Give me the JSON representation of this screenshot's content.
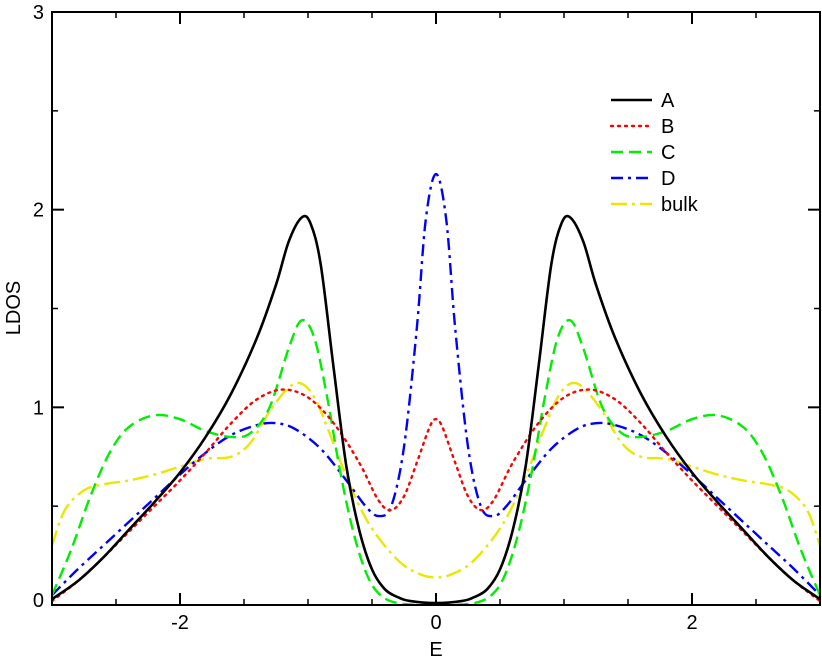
{
  "chart_data": {
    "type": "line",
    "title": "",
    "xlabel": "E",
    "ylabel": "LDOS",
    "xlim": [
      -3,
      3
    ],
    "ylim": [
      0,
      3
    ],
    "grid": false,
    "legend_position": "top-right",
    "x_ticks": [
      {
        "value": -2,
        "label": "-2"
      },
      {
        "value": 0,
        "label": "0"
      },
      {
        "value": 2,
        "label": "2"
      }
    ],
    "y_ticks": [
      {
        "value": 0,
        "label": "0"
      },
      {
        "value": 1,
        "label": "1"
      },
      {
        "value": 2,
        "label": "2"
      },
      {
        "value": 3,
        "label": "3"
      }
    ],
    "x_minor_ticks": [
      -2.5,
      -1.5,
      -1,
      -0.5,
      0.5,
      1,
      1.5,
      2.5
    ],
    "y_minor_ticks": [
      0.5,
      1.5,
      2.5
    ],
    "series": [
      {
        "name": "A",
        "color": "#000000",
        "dash": "solid",
        "points": [
          [
            -3,
            0.03
          ],
          [
            -2.8,
            0.12
          ],
          [
            -2.6,
            0.24
          ],
          [
            -2.4,
            0.38
          ],
          [
            -2.2,
            0.52
          ],
          [
            -2.0,
            0.67
          ],
          [
            -1.8,
            0.85
          ],
          [
            -1.6,
            1.07
          ],
          [
            -1.4,
            1.35
          ],
          [
            -1.25,
            1.62
          ],
          [
            -1.15,
            1.84
          ],
          [
            -1.05,
            1.96
          ],
          [
            -0.98,
            1.93
          ],
          [
            -0.9,
            1.72
          ],
          [
            -0.8,
            1.2
          ],
          [
            -0.7,
            0.7
          ],
          [
            -0.6,
            0.38
          ],
          [
            -0.5,
            0.18
          ],
          [
            -0.4,
            0.08
          ],
          [
            -0.3,
            0.04
          ],
          [
            -0.2,
            0.02
          ],
          [
            0,
            0.01
          ],
          [
            0.2,
            0.02
          ],
          [
            0.3,
            0.04
          ],
          [
            0.4,
            0.08
          ],
          [
            0.5,
            0.18
          ],
          [
            0.6,
            0.38
          ],
          [
            0.7,
            0.7
          ],
          [
            0.8,
            1.2
          ],
          [
            0.9,
            1.72
          ],
          [
            0.98,
            1.93
          ],
          [
            1.05,
            1.96
          ],
          [
            1.15,
            1.84
          ],
          [
            1.25,
            1.62
          ],
          [
            1.4,
            1.35
          ],
          [
            1.6,
            1.07
          ],
          [
            1.8,
            0.85
          ],
          [
            2.0,
            0.67
          ],
          [
            2.2,
            0.52
          ],
          [
            2.4,
            0.38
          ],
          [
            2.6,
            0.24
          ],
          [
            2.8,
            0.12
          ],
          [
            3,
            0.03
          ]
        ]
      },
      {
        "name": "B",
        "color": "#ff0000",
        "dash": "dotted",
        "points": [
          [
            -3,
            0.02
          ],
          [
            -2.8,
            0.12
          ],
          [
            -2.6,
            0.24
          ],
          [
            -2.4,
            0.37
          ],
          [
            -2.2,
            0.5
          ],
          [
            -2.0,
            0.63
          ],
          [
            -1.8,
            0.77
          ],
          [
            -1.6,
            0.92
          ],
          [
            -1.4,
            1.04
          ],
          [
            -1.2,
            1.09
          ],
          [
            -1.0,
            1.05
          ],
          [
            -0.8,
            0.92
          ],
          [
            -0.6,
            0.72
          ],
          [
            -0.45,
            0.53
          ],
          [
            -0.35,
            0.48
          ],
          [
            -0.25,
            0.55
          ],
          [
            -0.15,
            0.72
          ],
          [
            -0.05,
            0.9
          ],
          [
            0,
            0.94
          ],
          [
            0.05,
            0.9
          ],
          [
            0.15,
            0.72
          ],
          [
            0.25,
            0.55
          ],
          [
            0.35,
            0.48
          ],
          [
            0.45,
            0.53
          ],
          [
            0.6,
            0.72
          ],
          [
            0.8,
            0.92
          ],
          [
            1.0,
            1.05
          ],
          [
            1.2,
            1.09
          ],
          [
            1.4,
            1.04
          ],
          [
            1.6,
            0.92
          ],
          [
            1.8,
            0.77
          ],
          [
            2.0,
            0.63
          ],
          [
            2.2,
            0.5
          ],
          [
            2.4,
            0.37
          ],
          [
            2.6,
            0.24
          ],
          [
            2.8,
            0.12
          ],
          [
            3,
            0.02
          ]
        ]
      },
      {
        "name": "C",
        "color": "#00ee00",
        "dash": "dashed",
        "points": [
          [
            -3,
            0.05
          ],
          [
            -2.85,
            0.28
          ],
          [
            -2.7,
            0.55
          ],
          [
            -2.55,
            0.77
          ],
          [
            -2.4,
            0.9
          ],
          [
            -2.2,
            0.96
          ],
          [
            -2.0,
            0.94
          ],
          [
            -1.8,
            0.88
          ],
          [
            -1.6,
            0.85
          ],
          [
            -1.45,
            0.87
          ],
          [
            -1.3,
            1.0
          ],
          [
            -1.15,
            1.3
          ],
          [
            -1.05,
            1.44
          ],
          [
            -0.95,
            1.35
          ],
          [
            -0.85,
            1.05
          ],
          [
            -0.75,
            0.68
          ],
          [
            -0.65,
            0.38
          ],
          [
            -0.55,
            0.17
          ],
          [
            -0.45,
            0.06
          ],
          [
            -0.3,
            0.01
          ],
          [
            0,
            0
          ],
          [
            0.3,
            0.01
          ],
          [
            0.45,
            0.06
          ],
          [
            0.55,
            0.17
          ],
          [
            0.65,
            0.38
          ],
          [
            0.75,
            0.68
          ],
          [
            0.85,
            1.05
          ],
          [
            0.95,
            1.35
          ],
          [
            1.05,
            1.44
          ],
          [
            1.15,
            1.3
          ],
          [
            1.3,
            1.0
          ],
          [
            1.45,
            0.87
          ],
          [
            1.6,
            0.85
          ],
          [
            1.8,
            0.88
          ],
          [
            2.0,
            0.94
          ],
          [
            2.2,
            0.96
          ],
          [
            2.4,
            0.9
          ],
          [
            2.55,
            0.77
          ],
          [
            2.7,
            0.55
          ],
          [
            2.85,
            0.28
          ],
          [
            3,
            0.05
          ]
        ]
      },
      {
        "name": "D",
        "color": "#0000ff",
        "dash": "dashdot",
        "points": [
          [
            -3,
            0.05
          ],
          [
            -2.8,
            0.18
          ],
          [
            -2.6,
            0.3
          ],
          [
            -2.4,
            0.42
          ],
          [
            -2.2,
            0.54
          ],
          [
            -2.0,
            0.66
          ],
          [
            -1.8,
            0.77
          ],
          [
            -1.6,
            0.86
          ],
          [
            -1.4,
            0.91
          ],
          [
            -1.25,
            0.92
          ],
          [
            -1.1,
            0.89
          ],
          [
            -0.9,
            0.79
          ],
          [
            -0.7,
            0.63
          ],
          [
            -0.55,
            0.5
          ],
          [
            -0.45,
            0.45
          ],
          [
            -0.35,
            0.5
          ],
          [
            -0.25,
            0.8
          ],
          [
            -0.15,
            1.4
          ],
          [
            -0.08,
            1.95
          ],
          [
            0,
            2.18
          ],
          [
            0.08,
            1.95
          ],
          [
            0.15,
            1.4
          ],
          [
            0.25,
            0.8
          ],
          [
            0.35,
            0.5
          ],
          [
            0.45,
            0.45
          ],
          [
            0.55,
            0.5
          ],
          [
            0.7,
            0.63
          ],
          [
            0.9,
            0.79
          ],
          [
            1.1,
            0.89
          ],
          [
            1.25,
            0.92
          ],
          [
            1.4,
            0.91
          ],
          [
            1.6,
            0.86
          ],
          [
            1.8,
            0.77
          ],
          [
            2.0,
            0.66
          ],
          [
            2.2,
            0.54
          ],
          [
            2.4,
            0.42
          ],
          [
            2.6,
            0.3
          ],
          [
            2.8,
            0.18
          ],
          [
            3,
            0.05
          ]
        ]
      },
      {
        "name": "bulk",
        "color": "#e8e800",
        "dash": "longdashdot",
        "points": [
          [
            -3,
            0.3
          ],
          [
            -2.9,
            0.48
          ],
          [
            -2.75,
            0.58
          ],
          [
            -2.6,
            0.61
          ],
          [
            -2.4,
            0.63
          ],
          [
            -2.2,
            0.66
          ],
          [
            -2.0,
            0.7
          ],
          [
            -1.8,
            0.74
          ],
          [
            -1.6,
            0.75
          ],
          [
            -1.45,
            0.82
          ],
          [
            -1.3,
            0.98
          ],
          [
            -1.15,
            1.1
          ],
          [
            -1.05,
            1.12
          ],
          [
            -0.95,
            1.05
          ],
          [
            -0.85,
            0.9
          ],
          [
            -0.7,
            0.65
          ],
          [
            -0.55,
            0.44
          ],
          [
            -0.4,
            0.3
          ],
          [
            -0.25,
            0.2
          ],
          [
            -0.1,
            0.15
          ],
          [
            0,
            0.14
          ],
          [
            0.1,
            0.15
          ],
          [
            0.25,
            0.2
          ],
          [
            0.4,
            0.3
          ],
          [
            0.55,
            0.44
          ],
          [
            0.7,
            0.65
          ],
          [
            0.85,
            0.9
          ],
          [
            0.95,
            1.05
          ],
          [
            1.05,
            1.12
          ],
          [
            1.15,
            1.1
          ],
          [
            1.3,
            0.98
          ],
          [
            1.45,
            0.82
          ],
          [
            1.6,
            0.75
          ],
          [
            1.8,
            0.74
          ],
          [
            2.0,
            0.7
          ],
          [
            2.2,
            0.66
          ],
          [
            2.4,
            0.63
          ],
          [
            2.6,
            0.61
          ],
          [
            2.75,
            0.58
          ],
          [
            2.9,
            0.48
          ],
          [
            3,
            0.3
          ]
        ]
      }
    ]
  }
}
